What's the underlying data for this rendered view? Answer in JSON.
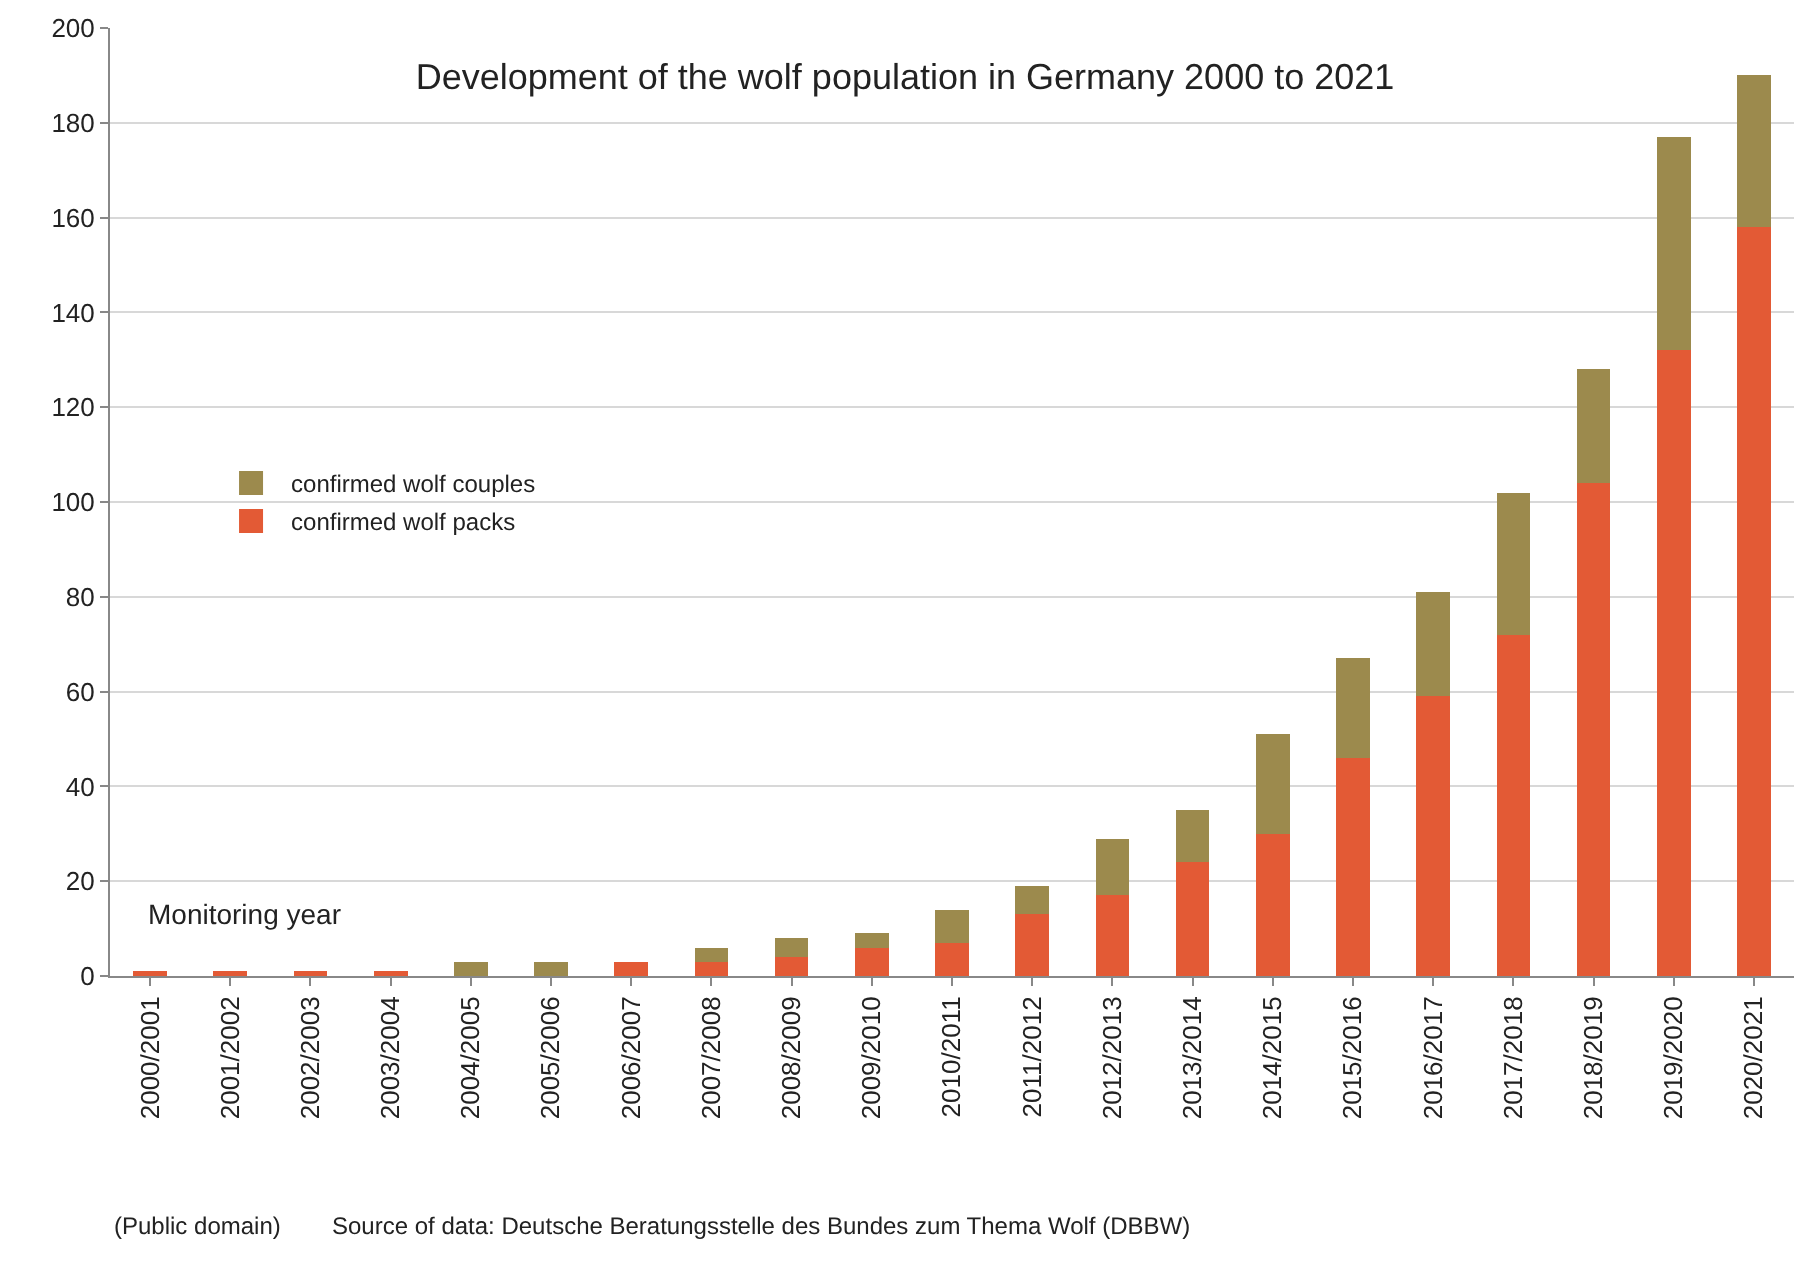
{
  "chart_data": {
    "type": "bar",
    "title": "Development of the wolf population in Germany 2000 to 2021",
    "stacked": true,
    "categories": [
      "2000/2001",
      "2001/2002",
      "2002/2003",
      "2003/2004",
      "2004/2005",
      "2005/2006",
      "2006/2007",
      "2007/2008",
      "2008/2009",
      "2009/2010",
      "2010/2011",
      "2011/2012",
      "2012/2013",
      "2013/2014",
      "2014/2015",
      "2015/2016",
      "2016/2017",
      "2017/2018",
      "2018/2019",
      "2019/2020",
      "2020/2021"
    ],
    "series": [
      {
        "name": "confirmed wolf packs",
        "color": "#e35a35",
        "values": [
          1,
          1,
          1,
          1,
          0,
          0,
          3,
          3,
          4,
          6,
          7,
          13,
          17,
          24,
          30,
          46,
          59,
          72,
          104,
          132,
          158
        ]
      },
      {
        "name": "confirmed wolf couples",
        "color": "#9c8a4d",
        "values": [
          0,
          0,
          0,
          0,
          3,
          3,
          0,
          3,
          4,
          3,
          7,
          6,
          12,
          11,
          21,
          21,
          22,
          30,
          24,
          45,
          32
        ]
      }
    ],
    "ylim": [
      0,
      200
    ],
    "yticks": [
      0,
      20,
      40,
      60,
      80,
      100,
      120,
      140,
      160,
      180,
      200
    ],
    "grid": "y",
    "legend": "left",
    "annotations": [
      "Monitoring year",
      "(Public domain)",
      "Source of data: Deutsche Beratungsstelle des Bundes zum Thema Wolf (DBBW)"
    ]
  }
}
